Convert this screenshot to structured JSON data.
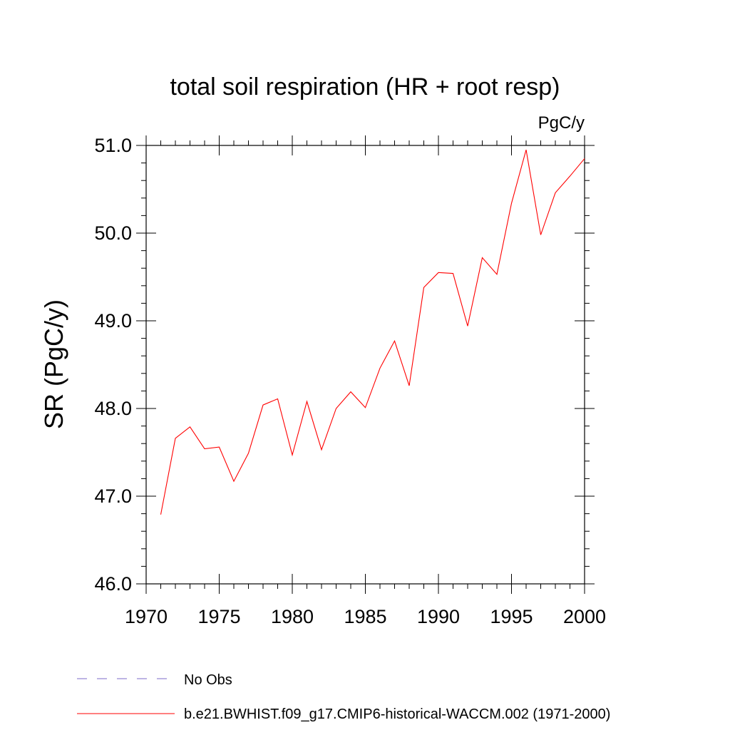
{
  "chart_data": {
    "type": "line",
    "title": "total soil respiration (HR + root resp)",
    "units": "PgC/y",
    "xlabel": "",
    "ylabel": "SR  (PgC/y)",
    "xlim": [
      1970,
      2000
    ],
    "ylim": [
      46.0,
      51.0
    ],
    "x_ticks": [
      "1970",
      "1975",
      "1980",
      "1985",
      "1990",
      "1995",
      "2000"
    ],
    "y_ticks": [
      "46.0",
      "47.0",
      "48.0",
      "49.0",
      "50.0",
      "51.0"
    ],
    "grid": false,
    "legend_position": "bottom",
    "series": [
      {
        "name": "b.e21.BWHIST.f09_g17.CMIP6-historical-WACCM.002 (1971-2000)",
        "color": "#ff0000",
        "style": "solid",
        "x": [
          1971,
          1972,
          1973,
          1974,
          1975,
          1976,
          1977,
          1978,
          1979,
          1980,
          1981,
          1982,
          1983,
          1984,
          1985,
          1986,
          1987,
          1988,
          1989,
          1990,
          1991,
          1992,
          1993,
          1994,
          1995,
          1996,
          1997,
          1998,
          1999,
          2000
        ],
        "values": [
          46.79,
          47.66,
          47.79,
          47.54,
          47.56,
          47.17,
          47.49,
          48.04,
          48.11,
          47.47,
          48.08,
          47.53,
          48.0,
          48.19,
          48.01,
          48.46,
          48.77,
          48.26,
          49.38,
          49.55,
          49.54,
          48.94,
          49.72,
          49.53,
          50.34,
          50.95,
          49.98,
          50.46,
          50.65,
          50.85
        ]
      },
      {
        "name": "No Obs",
        "color": "#7b68c8",
        "style": "dashed",
        "x": [],
        "values": []
      }
    ]
  }
}
